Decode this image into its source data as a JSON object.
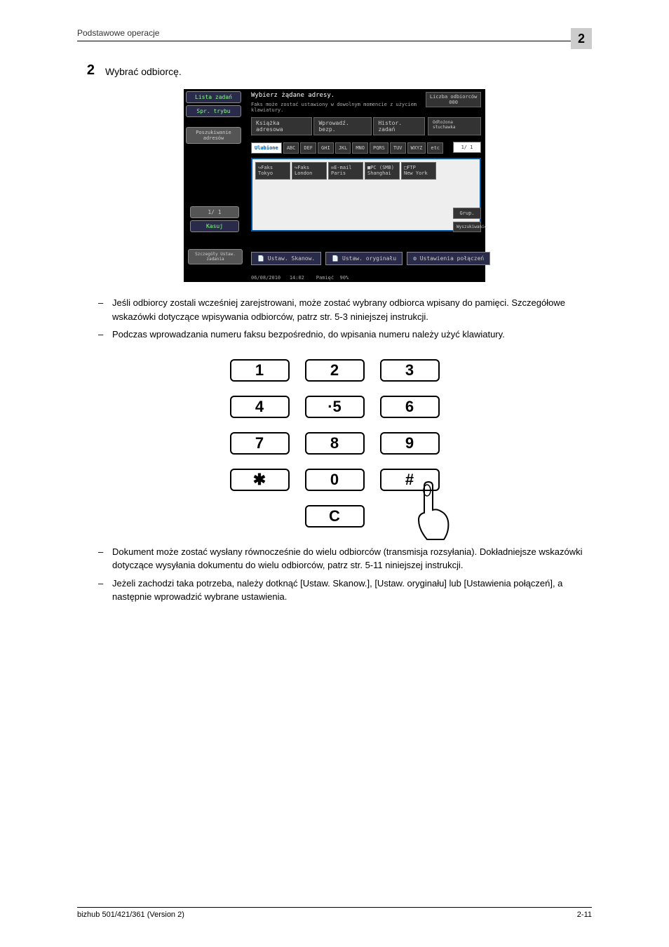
{
  "page": {
    "header_label": "Podstawowe operacje",
    "corner_num": "2",
    "footer_left": "bizhub 501/421/361 (Version 2)",
    "footer_right": "2-11"
  },
  "step": {
    "number": "2",
    "text": "Wybrać odbiorcę."
  },
  "ss": {
    "left_btn1": "Lista zadań",
    "left_btn2": "Spr. trybu",
    "left_label": "Poszukiwanie adresów",
    "left_pg": "1/ 1",
    "left_del": "Kasuj",
    "left_bot": "Szczegóły Ustaw. zadania",
    "title": "Wybierz żądane adresy.",
    "subtitle": "Faks może zostać ustawiony w dowolnym momencie z użyciem klawiatury.",
    "top_right1": "Liczba odbiorców",
    "top_right2": "000",
    "tab1": "Książka adresowa",
    "tab2": "Wprowadź. bezp.",
    "tab3": "Histor. zadań",
    "tab_right": "Odłożona słuchawka",
    "letters_active": "Ulubione",
    "letters": [
      "ABC",
      "DEF",
      "GHI",
      "JKL",
      "MNO",
      "PQRS",
      "TUV",
      "WXYZ",
      "etc"
    ],
    "cards": [
      {
        "type": "↪Faks",
        "name": "Tokyo"
      },
      {
        "type": "↪Faks",
        "name": "London"
      },
      {
        "type": "✉E-mail",
        "name": "Paris"
      },
      {
        "type": "■PC (SMB)",
        "name": "Shanghai"
      },
      {
        "type": "□FTP",
        "name": "New York"
      }
    ],
    "side_pg": "1/ 1",
    "side_grp": "Grup.",
    "side_search": "Wyszukiwanie",
    "bot1": "Ustaw. Skanow.",
    "bot2": "Ustaw. oryginału",
    "bot3": "Ustawienia połączeń",
    "status_date": "06/08/2010",
    "status_time": "14:02",
    "status_mem": "Pamięć",
    "status_pct": "90%"
  },
  "bullets1": [
    "Jeśli odbiorcy zostali wcześniej zarejstrowani, może zostać wybrany odbiorca wpisany do pamięci. Szczegółowe wskazówki dotyczące wpisywania odbiorców, patrz str. 5-3 niniejszej instrukcji.",
    "Podczas wprowadzania numeru faksu bezpośrednio, do wpisania numeru należy użyć klawiatury."
  ],
  "keypad": {
    "rows": [
      [
        "1",
        "2",
        "3"
      ],
      [
        "4",
        "·5",
        "6"
      ],
      [
        "7",
        "8",
        "9"
      ],
      [
        "✱",
        "0",
        "#"
      ]
    ],
    "clear": "C"
  },
  "bullets2": [
    "Dokument może zostać wysłany równocześnie do wielu odbiorców (transmisja rozsyłania). Dokładniejsze wskazówki dotyczące wysyłania dokumentu do wielu odbiorców, patrz str. 5-11 niniejszej instrukcji.",
    "Jeżeli zachodzi taka potrzeba, należy dotknąć [Ustaw. Skanow.], [Ustaw. oryginału] lub [Ustawienia połączeń], a następnie wprowadzić wybrane ustawienia."
  ]
}
